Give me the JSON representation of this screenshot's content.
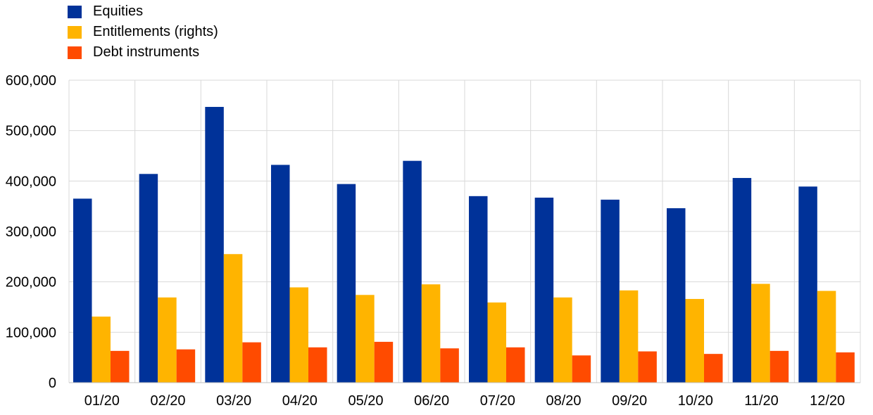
{
  "chart_data": {
    "type": "bar",
    "categories": [
      "01/20",
      "02/20",
      "03/20",
      "04/20",
      "05/20",
      "06/20",
      "07/20",
      "08/20",
      "09/20",
      "10/20",
      "11/20",
      "12/20"
    ],
    "series": [
      {
        "name": "Equities",
        "color": "#003299",
        "values": [
          365000,
          414000,
          547000,
          432000,
          394000,
          440000,
          370000,
          367000,
          363000,
          346000,
          406000,
          389000
        ]
      },
      {
        "name": "Entitlements (rights)",
        "color": "#FFB400",
        "values": [
          131000,
          169000,
          255000,
          189000,
          174000,
          195000,
          159000,
          169000,
          183000,
          166000,
          196000,
          182000
        ]
      },
      {
        "name": "Debt instruments",
        "color": "#FF4B00",
        "values": [
          63000,
          66000,
          80000,
          70000,
          81000,
          68000,
          70000,
          54000,
          62000,
          57000,
          63000,
          60000
        ]
      }
    ],
    "yticks": [
      "0",
      "100,000",
      "200,000",
      "300,000",
      "400,000",
      "500,000",
      "600,000"
    ],
    "ylim": [
      0,
      600000
    ],
    "grid": true,
    "legend_position": "top-left"
  }
}
